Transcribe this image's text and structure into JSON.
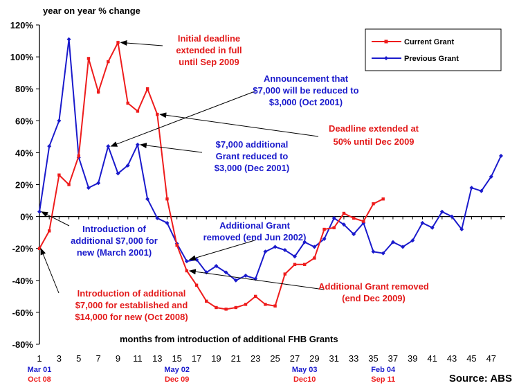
{
  "colors": {
    "current": "#ee1c1c",
    "previous": "#1a1acc",
    "annot_red": "#e31b1b",
    "annot_blue": "#1a1acc",
    "axis": "#000000"
  },
  "chart_data": {
    "type": "line",
    "ylabel": "year on year % change",
    "xlabel": "months from introduction of additional FHB Grants",
    "source": "Source: ABS",
    "ylim": [
      -80,
      120
    ],
    "yticks": [
      120,
      100,
      80,
      60,
      40,
      20,
      0,
      -20,
      -40,
      -60,
      -80
    ],
    "ytick_labels": [
      "120%",
      "100%",
      "80%",
      "60%",
      "40%",
      "20%",
      "0%",
      "-20%",
      "-40%",
      "-60%",
      "-80%"
    ],
    "xlim": [
      1,
      48
    ],
    "xticks": [
      1,
      3,
      5,
      7,
      9,
      11,
      13,
      15,
      17,
      19,
      21,
      23,
      25,
      27,
      29,
      31,
      33,
      35,
      37,
      39,
      41,
      43,
      45,
      47
    ],
    "grid": false,
    "legend_position": "top-right",
    "series": [
      {
        "name": "Current Grant",
        "color": "#ee1c1c",
        "x": [
          1,
          2,
          3,
          4,
          5,
          6,
          7,
          8,
          9,
          10,
          11,
          12,
          13,
          14,
          15,
          16,
          17,
          18,
          19,
          20,
          21,
          22,
          23,
          24,
          25,
          26,
          27,
          28,
          29,
          30,
          31,
          32,
          33,
          34,
          35,
          36
        ],
        "values": [
          -20,
          -9,
          26,
          20,
          38,
          99,
          78,
          97,
          109,
          71,
          66,
          80,
          64,
          11,
          -18,
          -34,
          -43,
          -53,
          -57,
          -58,
          -57,
          -55,
          -50,
          -55,
          -56,
          -36,
          -30,
          -30,
          -26,
          -8,
          -7,
          2,
          -1,
          -3,
          8,
          11
        ]
      },
      {
        "name": "Previous Grant",
        "color": "#1a1acc",
        "x": [
          1,
          2,
          3,
          4,
          5,
          6,
          7,
          8,
          9,
          10,
          11,
          12,
          13,
          14,
          15,
          16,
          17,
          18,
          19,
          20,
          21,
          22,
          23,
          24,
          25,
          26,
          27,
          28,
          29,
          30,
          31,
          32,
          33,
          34,
          35,
          36,
          37,
          38,
          39,
          40,
          41,
          42,
          43,
          44,
          45,
          46,
          47,
          48
        ],
        "values": [
          3,
          44,
          60,
          111,
          37,
          18,
          21,
          44,
          27,
          32,
          45,
          11,
          -1,
          -4,
          -17,
          -28,
          -27,
          -35,
          -31,
          -35,
          -40,
          -37,
          -39,
          -22,
          -19,
          -21,
          -25,
          -16,
          -19,
          -14,
          -1,
          -5,
          -11,
          -4,
          -22,
          -23,
          -16,
          -19,
          -15,
          -4,
          -7,
          3,
          0,
          -8,
          18,
          16,
          25,
          38
        ]
      }
    ],
    "date_labels": [
      {
        "x": 1,
        "blue": "Mar 01",
        "red": "Oct 08"
      },
      {
        "x": 15,
        "blue": "May 02",
        "red": "Dec 09"
      },
      {
        "x": 28,
        "blue": "May 03",
        "red": "Dec10"
      },
      {
        "x": 36,
        "blue": "Feb 04",
        "red": "Sep 11"
      }
    ],
    "annotations": [
      {
        "color": "red",
        "lines": [
          "Initial deadline",
          "extended in full",
          "until Sep 2009"
        ]
      },
      {
        "color": "blue",
        "lines": [
          "Announcement that",
          "$7,000 will be reduced to",
          "$3,000 (Oct 2001)"
        ]
      },
      {
        "color": "red",
        "lines": [
          "Deadline  extended  at",
          "50% until Dec 2009"
        ]
      },
      {
        "color": "blue",
        "lines": [
          "$7,000 additional",
          "Grant reduced to",
          "$3,000 (Dec 2001)"
        ]
      },
      {
        "color": "blue",
        "lines": [
          "Introduction of",
          "additional $7,000 for",
          "new (March 2001)"
        ]
      },
      {
        "color": "blue",
        "lines": [
          "Additional Grant",
          "removed (end Jun 2002)"
        ]
      },
      {
        "color": "red",
        "lines": [
          "Introduction of additional",
          "$7,000 for established and",
          "$14,000 for new (Oct 2008)"
        ]
      },
      {
        "color": "red",
        "lines": [
          "Additional Grant removed",
          "(end Dec 2009)"
        ]
      }
    ]
  }
}
